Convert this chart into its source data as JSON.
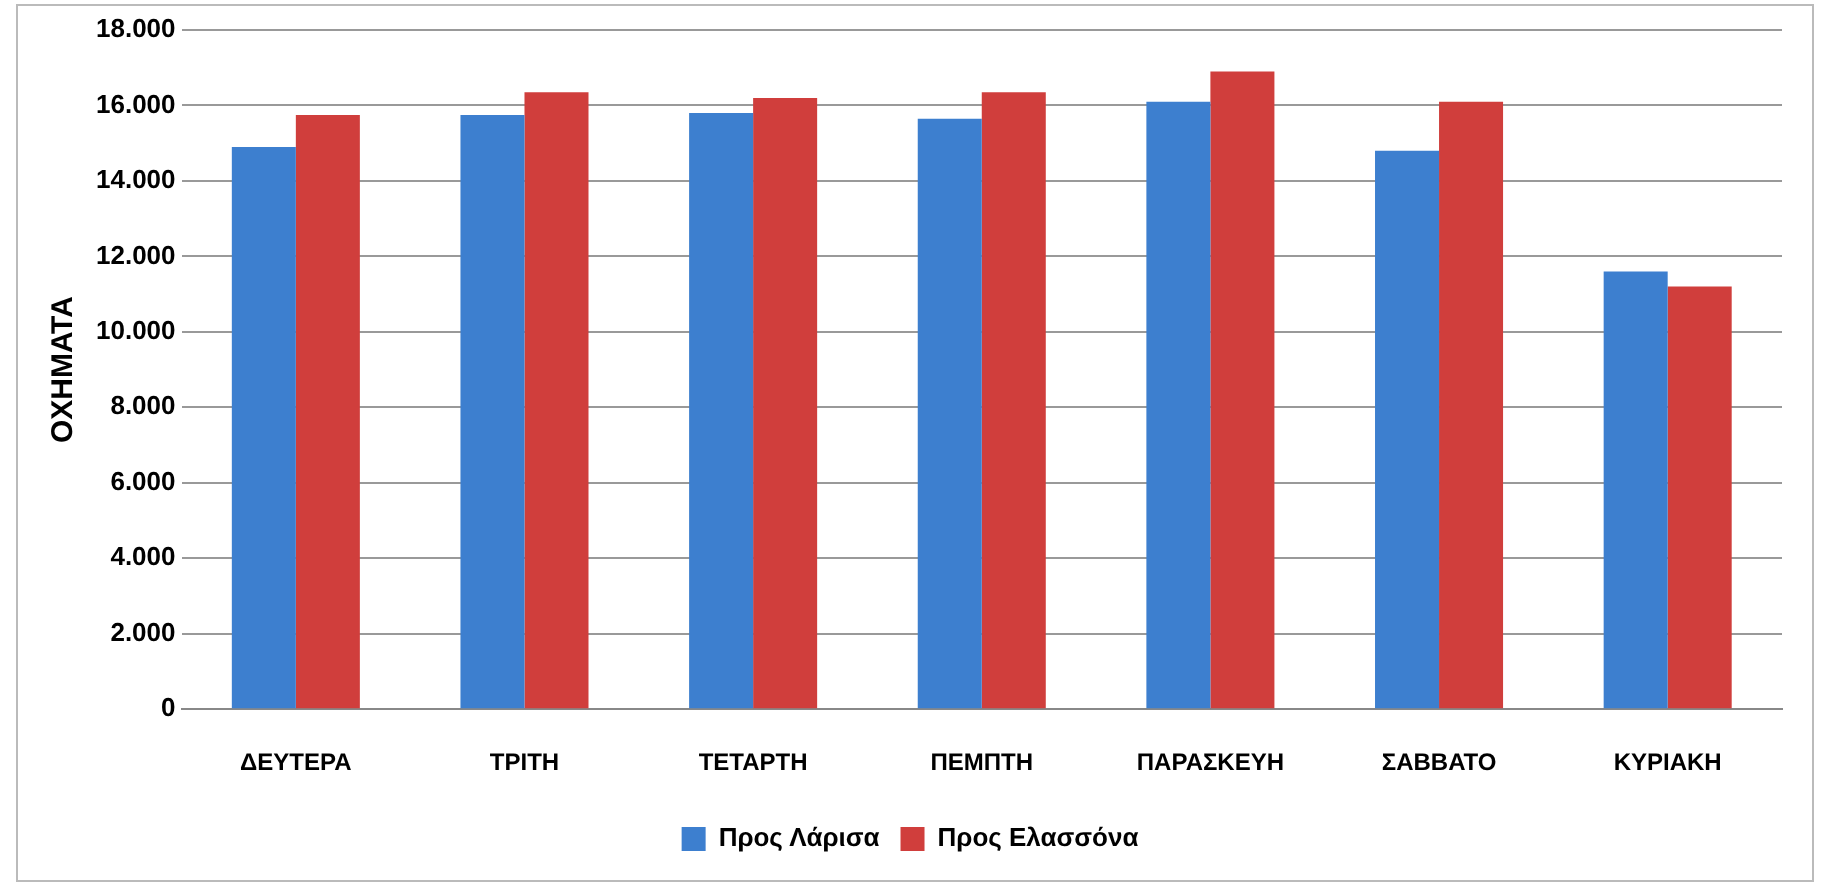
{
  "chart_data": {
    "type": "bar",
    "ylabel": "ΟΧΗΜΑΤΑ",
    "categories": [
      "ΔΕΥΤΕΡΑ",
      "ΤΡΙΤΗ",
      "ΤΕΤΑΡΤΗ",
      "ΠΕΜΠΤΗ",
      "ΠΑΡΑΣΚΕΥΗ",
      "ΣΑΒΒΑΤΟ",
      "ΚΥΡΙΑΚΗ"
    ],
    "series": [
      {
        "name": "Προς Λάρισα",
        "color": "#3d7fcf",
        "values": [
          14900,
          15750,
          15800,
          15650,
          16100,
          14800,
          11600
        ]
      },
      {
        "name": "Προς Ελασσόνα",
        "color": "#d03e3c",
        "values": [
          15750,
          16350,
          16200,
          16350,
          16900,
          16100,
          11200
        ]
      }
    ],
    "ylim": [
      0,
      18000
    ],
    "yticks": [
      {
        "value": 0,
        "label": "0"
      },
      {
        "value": 2000,
        "label": "2.000"
      },
      {
        "value": 4000,
        "label": "4.000"
      },
      {
        "value": 6000,
        "label": "6.000"
      },
      {
        "value": 8000,
        "label": "8.000"
      },
      {
        "value": 10000,
        "label": "10.000"
      },
      {
        "value": 12000,
        "label": "12.000"
      },
      {
        "value": 14000,
        "label": "14.000"
      },
      {
        "value": 16000,
        "label": "16.000"
      },
      {
        "value": 18000,
        "label": "18.000"
      }
    ],
    "grid": "y",
    "legend": "bottom"
  }
}
